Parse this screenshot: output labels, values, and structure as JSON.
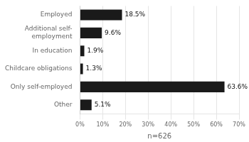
{
  "chart_data": {
    "type": "bar",
    "orientation": "horizontal",
    "categories": [
      "Employed",
      "Additional self-\nemployment",
      "In education",
      "Childcare obligations",
      "Only self-employed",
      "Other"
    ],
    "values": [
      18.5,
      9.6,
      1.9,
      1.3,
      63.6,
      5.1
    ],
    "value_labels": [
      "18.5%",
      "9.6%",
      "1.9%",
      "1.3%",
      "63.6%",
      "5.1%"
    ],
    "data_labels": true,
    "color": "#1a1a1a",
    "xlabel": "n=626",
    "xlim": [
      0,
      70
    ],
    "xticks": [
      {
        "value": 0,
        "label": "0%"
      },
      {
        "value": 10,
        "label": "10%"
      },
      {
        "value": 20,
        "label": "20%"
      },
      {
        "value": 30,
        "label": "30%"
      },
      {
        "value": 40,
        "label": "40%"
      },
      {
        "value": 50,
        "label": "50%"
      },
      {
        "value": 60,
        "label": "60%"
      },
      {
        "value": 70,
        "label": "70%"
      }
    ],
    "grid": true
  }
}
